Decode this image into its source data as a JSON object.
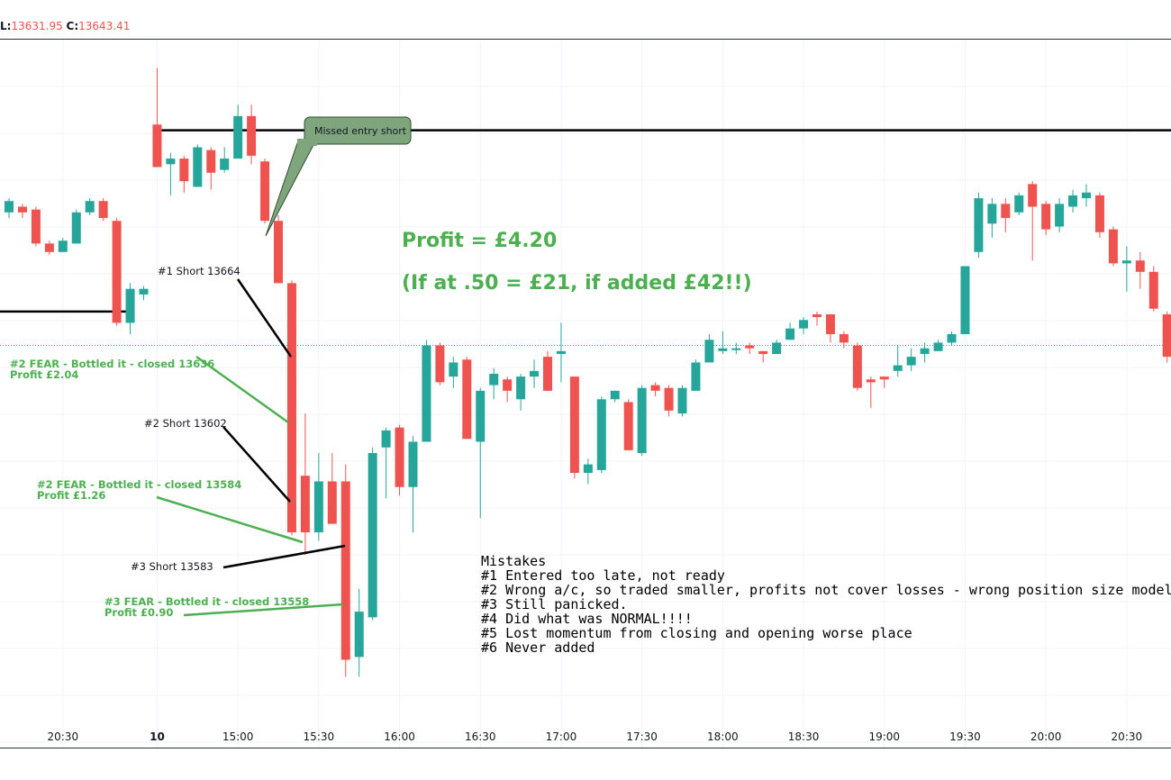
{
  "header": {
    "low_label": "L:",
    "low_value": "13631.95",
    "close_label": "C:",
    "close_value": "13643.41"
  },
  "colors": {
    "up": "#26a69a",
    "down": "#ef5350",
    "annotation_green": "#4caf50",
    "level_line": "#000000",
    "callout_fill": "#7fa57d"
  },
  "chart_data": {
    "type": "candlestick",
    "price_range": [
      13470,
      13720
    ],
    "x_ticks": [
      {
        "label": "20:30",
        "index": 4
      },
      {
        "label": "10",
        "index": 11
      },
      {
        "label": "15:00",
        "index": 17
      },
      {
        "label": "15:30",
        "index": 23
      },
      {
        "label": "16:00",
        "index": 29
      },
      {
        "label": "16:30",
        "index": 35
      },
      {
        "label": "17:00",
        "index": 41
      },
      {
        "label": "17:30",
        "index": 47
      },
      {
        "label": "18:00",
        "index": 53
      },
      {
        "label": "18:30",
        "index": 59
      },
      {
        "label": "19:00",
        "index": 65
      },
      {
        "label": "19:30",
        "index": 71
      },
      {
        "label": "20:00",
        "index": 77
      },
      {
        "label": "20:30",
        "index": 83
      }
    ],
    "candles": [
      [
        13659,
        13663,
        13657,
        13664
      ],
      [
        13661,
        13659,
        13657,
        13662
      ],
      [
        13660,
        13648,
        13647,
        13661
      ],
      [
        13648,
        13645,
        13644,
        13649
      ],
      [
        13645,
        13649,
        13645,
        13650
      ],
      [
        13648,
        13659,
        13648,
        13660
      ],
      [
        13659,
        13663,
        13658,
        13664
      ],
      [
        13663,
        13657,
        13656,
        13664
      ],
      [
        13656,
        13620,
        13619,
        13657
      ],
      [
        13620,
        13632,
        13616,
        13634
      ],
      [
        13630,
        13632,
        13628,
        13633
      ],
      [
        13690,
        13675,
        13675,
        13710
      ],
      [
        13676,
        13678,
        13665,
        13680
      ],
      [
        13678,
        13670,
        13666,
        13679
      ],
      [
        13668,
        13682,
        13668,
        13683
      ],
      [
        13681,
        13673,
        13667,
        13682
      ],
      [
        13674,
        13678,
        13673,
        13682
      ],
      [
        13678,
        13693,
        13678,
        13697
      ],
      [
        13693,
        13679,
        13676,
        13697
      ],
      [
        13677,
        13656,
        13655,
        13678
      ],
      [
        13656,
        13634,
        13634,
        13658
      ],
      [
        13634,
        13546,
        13545,
        13635
      ],
      [
        13566,
        13546,
        13538,
        13588
      ],
      [
        13546,
        13564,
        13543,
        13574
      ],
      [
        13564,
        13549,
        13549,
        13574
      ],
      [
        13564,
        13501,
        13495,
        13570
      ],
      [
        13502,
        13518,
        13495,
        13526
      ],
      [
        13516,
        13574,
        13515,
        13576
      ],
      [
        13576,
        13582,
        13558,
        13583
      ],
      [
        13583,
        13562,
        13559,
        13584
      ],
      [
        13562,
        13578,
        13546,
        13580
      ],
      [
        13578,
        13612,
        13578,
        13614
      ],
      [
        13612,
        13599,
        13598,
        13613
      ],
      [
        13601,
        13606,
        13597,
        13608
      ],
      [
        13607,
        13579,
        13579,
        13608
      ],
      [
        13578,
        13596,
        13551,
        13597
      ],
      [
        13598,
        13602,
        13593,
        13604
      ],
      [
        13600,
        13596,
        13592,
        13601
      ],
      [
        13593,
        13601,
        13589,
        13602
      ],
      [
        13601,
        13603,
        13597,
        13607
      ],
      [
        13608,
        13596,
        13596,
        13610
      ],
      [
        13609,
        13610,
        13599,
        13620
      ],
      [
        13601,
        13567,
        13565,
        13601
      ],
      [
        13567,
        13570,
        13563,
        13572
      ],
      [
        13568,
        13593,
        13567,
        13594
      ],
      [
        13593,
        13596,
        13592,
        13596
      ],
      [
        13592,
        13575,
        13575,
        13593
      ],
      [
        13574,
        13597,
        13573,
        13598
      ],
      [
        13598,
        13596,
        13594,
        13599
      ],
      [
        13597,
        13589,
        13587,
        13598
      ],
      [
        13588,
        13597,
        13587,
        13598
      ],
      [
        13596,
        13606,
        13596,
        13607
      ],
      [
        13606,
        13614,
        13606,
        13616
      ],
      [
        13610,
        13611,
        13609,
        13617
      ],
      [
        13611,
        13611,
        13609,
        13613
      ],
      [
        13612,
        13611,
        13609,
        13613
      ],
      [
        13610,
        13609,
        13606,
        13610
      ],
      [
        13609,
        13613,
        13609,
        13614
      ],
      [
        13614,
        13618,
        13614,
        13620
      ],
      [
        13618,
        13621,
        13616,
        13622
      ],
      [
        13623,
        13622,
        13619,
        13624
      ],
      [
        13623,
        13616,
        13613,
        13623
      ],
      [
        13616,
        13613,
        13611,
        13617
      ],
      [
        13612,
        13597,
        13596,
        13613
      ],
      [
        13600,
        13599,
        13590,
        13601
      ],
      [
        13601,
        13600,
        13597,
        13601
      ],
      [
        13603,
        13605,
        13601,
        13612
      ],
      [
        13605,
        13608,
        13603,
        13611
      ],
      [
        13609,
        13611,
        13606,
        13613
      ],
      [
        13610,
        13613,
        13610,
        13614
      ],
      [
        13613,
        13616,
        13612,
        13617
      ],
      [
        13616,
        13640,
        13616,
        13640
      ],
      [
        13645,
        13664,
        13643,
        13666
      ],
      [
        13655,
        13662,
        13650,
        13664
      ],
      [
        13662,
        13657,
        13652,
        13664
      ],
      [
        13659,
        13665,
        13658,
        13666
      ],
      [
        13669,
        13661,
        13642,
        13670
      ],
      [
        13662,
        13653,
        13651,
        13663
      ],
      [
        13654,
        13662,
        13652,
        13664
      ],
      [
        13661,
        13665,
        13659,
        13667
      ],
      [
        13664,
        13666,
        13661,
        13669
      ],
      [
        13665,
        13652,
        13650,
        13666
      ],
      [
        13653,
        13641,
        13640,
        13654
      ],
      [
        13641,
        13642,
        13631,
        13647
      ],
      [
        13642,
        13638,
        13632,
        13645
      ],
      [
        13638,
        13625,
        13624,
        13640
      ],
      [
        13623,
        13608,
        13606,
        13624
      ],
      [
        13608,
        13616,
        13606,
        13618
      ]
    ],
    "levels": [
      {
        "price": 13688,
        "style": "solid",
        "from_index": 11,
        "to_index": 88
      },
      {
        "price": 13624,
        "style": "solid",
        "from_index": -1,
        "to_index": 9
      },
      {
        "price": 13612,
        "style": "dotted",
        "from_index": -1,
        "to_index": 88
      }
    ]
  },
  "annotations": {
    "callout": "Missed entry short",
    "profit_line1": "Profit = £4.20",
    "profit_line2": "(If at .50 = £21, if added £42!!)",
    "short1": "#1 Short 13664",
    "fear1_line1": "#2 FEAR - Bottled it - closed 13636",
    "fear1_line2": "Profit £2.04",
    "short2": "#2 Short 13602",
    "fear2_line1": "#2 FEAR - Bottled it - closed 13584",
    "fear2_line2": "Profit £1.26",
    "short3": "#3 Short 13583",
    "fear3_line1": "#3 FEAR - Bottled it - closed 13558",
    "fear3_line2": "Profit £0.90"
  },
  "mistakes": {
    "title": "Mistakes",
    "items": [
      "#1  Entered too late, not ready",
      "#2  Wrong a/c, so traded smaller, profits not cover losses - wrong position size model",
      "#3  Still panicked.",
      "#4  Did what was NORMAL!!!!",
      "#5  Lost momentum from closing and opening worse place",
      "#6  Never added"
    ]
  }
}
